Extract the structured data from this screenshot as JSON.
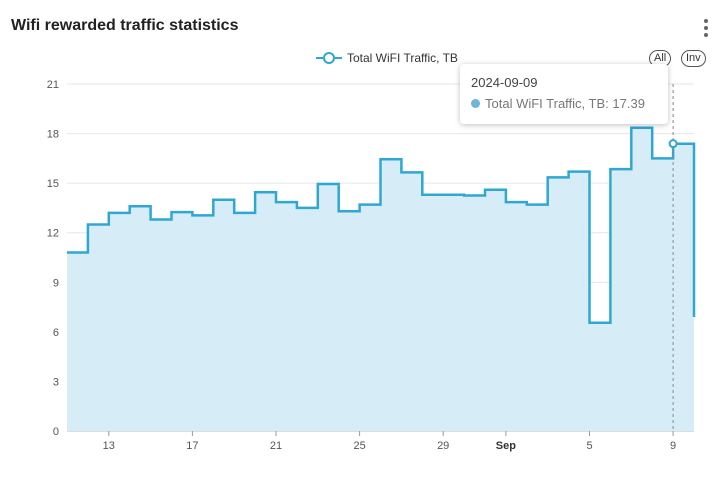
{
  "header": {
    "title": "Wifi rewarded traffic statistics",
    "menu_icon": "kebab-menu-icon"
  },
  "legend": {
    "label": "Total WiFI Traffic, TB",
    "all_label": "All",
    "inv_label": "Inv"
  },
  "tooltip": {
    "date": "2024-09-09",
    "series_label": "Total WiFI Traffic, TB",
    "value": "17.39"
  },
  "colors": {
    "line": "#2fa7d4",
    "fill": "#d6edf8",
    "grid": "#e6e6e6",
    "tooltip_dot": "#6ab7d8"
  },
  "chart_data": {
    "type": "area",
    "step": true,
    "series": [
      {
        "name": "Total WiFI Traffic, TB",
        "x": [
          "2024-08-11",
          "2024-08-12",
          "2024-08-13",
          "2024-08-14",
          "2024-08-15",
          "2024-08-16",
          "2024-08-17",
          "2024-08-18",
          "2024-08-19",
          "2024-08-20",
          "2024-08-21",
          "2024-08-22",
          "2024-08-23",
          "2024-08-24",
          "2024-08-25",
          "2024-08-26",
          "2024-08-27",
          "2024-08-28",
          "2024-08-29",
          "2024-08-30",
          "2024-08-31",
          "2024-09-01",
          "2024-09-02",
          "2024-09-03",
          "2024-09-04",
          "2024-09-05",
          "2024-09-06",
          "2024-09-07",
          "2024-09-08",
          "2024-09-09",
          "2024-09-10"
        ],
        "values": [
          10.8,
          12.5,
          13.2,
          13.6,
          12.8,
          13.25,
          13.05,
          14.0,
          13.2,
          14.45,
          13.85,
          13.5,
          14.95,
          13.3,
          13.7,
          16.45,
          15.65,
          14.3,
          14.3,
          14.25,
          14.6,
          13.85,
          13.7,
          15.35,
          15.7,
          6.55,
          15.85,
          18.35,
          16.5,
          17.39,
          6.9
        ]
      }
    ],
    "xticks": [
      "13",
      "17",
      "21",
      "25",
      "29",
      "Sep",
      "5",
      "9"
    ],
    "yticks": [
      0,
      3,
      6,
      9,
      12,
      15,
      18,
      21
    ],
    "ylim": [
      0,
      21
    ],
    "grid": true,
    "legend_position": "top-center",
    "highlight_date": "2024-09-09"
  }
}
